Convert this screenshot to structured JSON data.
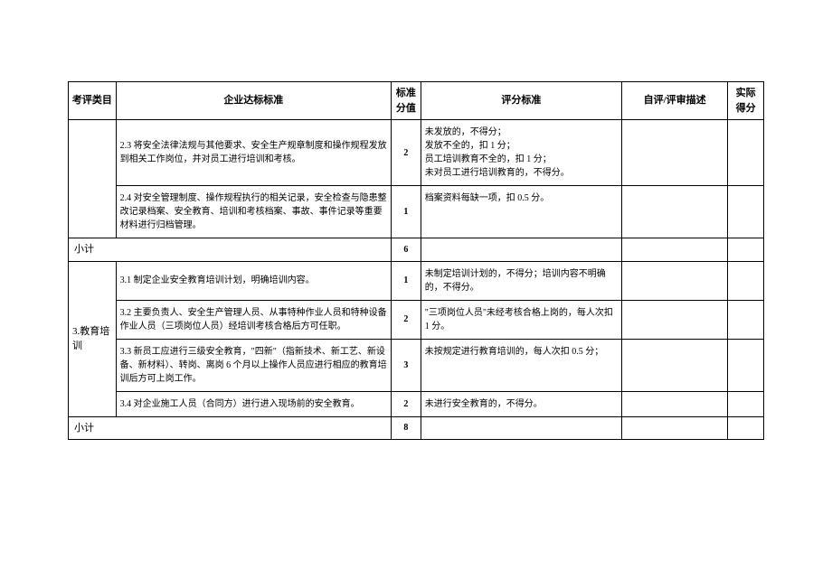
{
  "headers": {
    "category": "考评类目",
    "standard": "企业达标标准",
    "score": "标准分值",
    "criteria": "评分标准",
    "review": "自评/评审描述",
    "actual": "实际得分"
  },
  "section_a": {
    "row1": {
      "standard": "2.3 将安全法律法规与其他要求、安全生产规章制度和操作规程发放到相关工作岗位，并对员工进行培训和考核。",
      "score": "2",
      "criteria": "未发放的，不得分；\n发放不全的，扣 1 分；\n员工培训教育不全的，扣 1 分；\n未对员工进行培训教育的，不得分。"
    },
    "row2": {
      "standard": "2.4 对安全管理制度、操作规程执行的相关记录，安全检查与隐患整改记录档案、安全教育、培训和考核档案、事故、事件记录等重要材料进行归档管理。",
      "score": "1",
      "criteria": "档案资料每缺一项，扣 0.5 分。"
    },
    "subtotal_label": "小计",
    "subtotal_score": "6"
  },
  "section_b": {
    "category": "3.教育培训",
    "row1": {
      "standard": "3.1 制定企业安全教育培训计划，明确培训内容。",
      "score": "1",
      "criteria": "未制定培训计划的，不得分；培训内容不明确的，不得分。"
    },
    "row2": {
      "standard": "3.2 主要负责人、安全生产管理人员、从事特种作业人员和特种设备作业人员（三项岗位人员）经培训考核合格后方可任职。",
      "score": "2",
      "criteria": "\"三项岗位人员\"未经考核合格上岗的，每人次扣 1 分。"
    },
    "row3": {
      "standard": "3.3 新员工应进行三级安全教育，\"四新\"（指新技术、新工艺、新设备、新材料）、转岗、离岗 6 个月以上操作人员应进行相应的教育培训后方可上岗工作。",
      "score": "3",
      "criteria": "未按规定进行教育培训的，每人次扣 0.5 分；"
    },
    "row4": {
      "standard": "3.4 对企业施工人员（合同方）进行进入现场前的安全教育。",
      "score": "2",
      "criteria": "未进行安全教育的，不得分。"
    },
    "subtotal_label": "小计",
    "subtotal_score": "8"
  }
}
